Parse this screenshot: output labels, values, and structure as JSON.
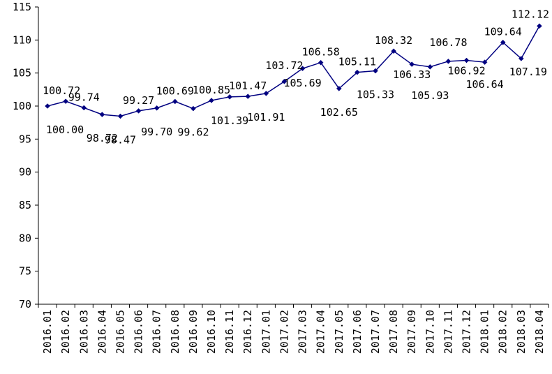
{
  "chart_data": {
    "type": "line",
    "title": "",
    "xlabel": "",
    "ylabel": "",
    "ylim": [
      70,
      115
    ],
    "yticks": [
      70,
      75,
      80,
      85,
      90,
      95,
      100,
      105,
      110,
      115
    ],
    "grid": false,
    "legend": "none",
    "line_color": "#000080",
    "categories": [
      "2016.01",
      "2016.02",
      "2016.03",
      "2016.04",
      "2016.05",
      "2016.06",
      "2016.07",
      "2016.08",
      "2016.09",
      "2016.10",
      "2016.11",
      "2016.12",
      "2017.01",
      "2017.02",
      "2017.03",
      "2017.04",
      "2017.05",
      "2017.06",
      "2017.07",
      "2017.08",
      "2017.09",
      "2017.10",
      "2017.11",
      "2017.12",
      "2018.01",
      "2018.02",
      "2018.03",
      "2018.04"
    ],
    "series": [
      {
        "values": [
          100.0,
          100.72,
          99.74,
          98.72,
          98.47,
          99.27,
          99.7,
          100.69,
          99.62,
          100.85,
          101.39,
          101.47,
          101.91,
          103.72,
          105.69,
          106.58,
          102.65,
          105.11,
          105.33,
          108.32,
          106.33,
          105.93,
          106.78,
          106.92,
          106.64,
          109.64,
          107.19,
          112.12
        ],
        "labels": [
          "100.00",
          "100.72",
          "99.74",
          "98.72",
          "98.47",
          "99.27",
          "99.70",
          "100.69",
          "99.62",
          "100.85",
          "101.39",
          "101.47",
          "101.91",
          "103.72",
          "105.69",
          "106.58",
          "102.65",
          "105.11",
          "105.33",
          "108.32",
          "106.33",
          "105.93",
          "106.78",
          "106.92",
          "106.64",
          "109.64",
          "107.19",
          "112.12"
        ]
      }
    ]
  }
}
